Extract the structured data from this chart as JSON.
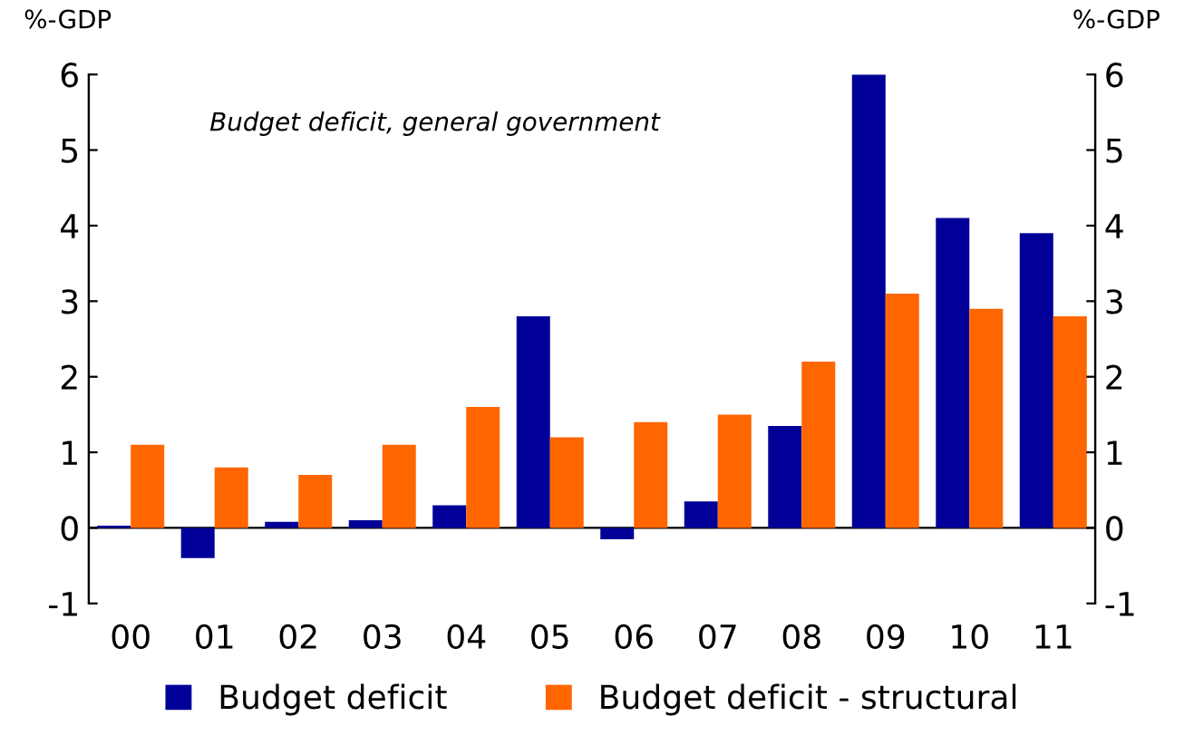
{
  "chart_data": {
    "type": "bar",
    "ylabel": "%-GDP",
    "y2label": "%-GDP",
    "annotations": [
      "Budget deficit, general government"
    ],
    "categories": [
      "00",
      "01",
      "02",
      "03",
      "04",
      "05",
      "06",
      "07",
      "08",
      "09",
      "10",
      "11"
    ],
    "series": [
      {
        "name": "Budget deficit",
        "color": "#000099",
        "values": [
          0.03,
          -0.4,
          0.08,
          0.1,
          0.3,
          2.8,
          -0.15,
          0.35,
          1.35,
          6.0,
          4.1,
          3.9
        ]
      },
      {
        "name": "Budget deficit - structural",
        "color": "#ff6600",
        "values": [
          1.1,
          0.8,
          0.7,
          1.1,
          1.6,
          1.2,
          1.4,
          1.5,
          2.2,
          3.1,
          2.9,
          2.8
        ]
      }
    ],
    "ylim": [
      -1,
      6
    ],
    "yticks": [
      -1,
      0,
      1,
      2,
      3,
      4,
      5,
      6
    ],
    "y2lim": [
      -1,
      6
    ],
    "y2ticks": [
      -1,
      0,
      1,
      2,
      3,
      4,
      5,
      6
    ],
    "ref_lines": [
      {
        "axis": "y",
        "value": 0,
        "color": "#000000"
      }
    ],
    "legend": "bottom"
  }
}
